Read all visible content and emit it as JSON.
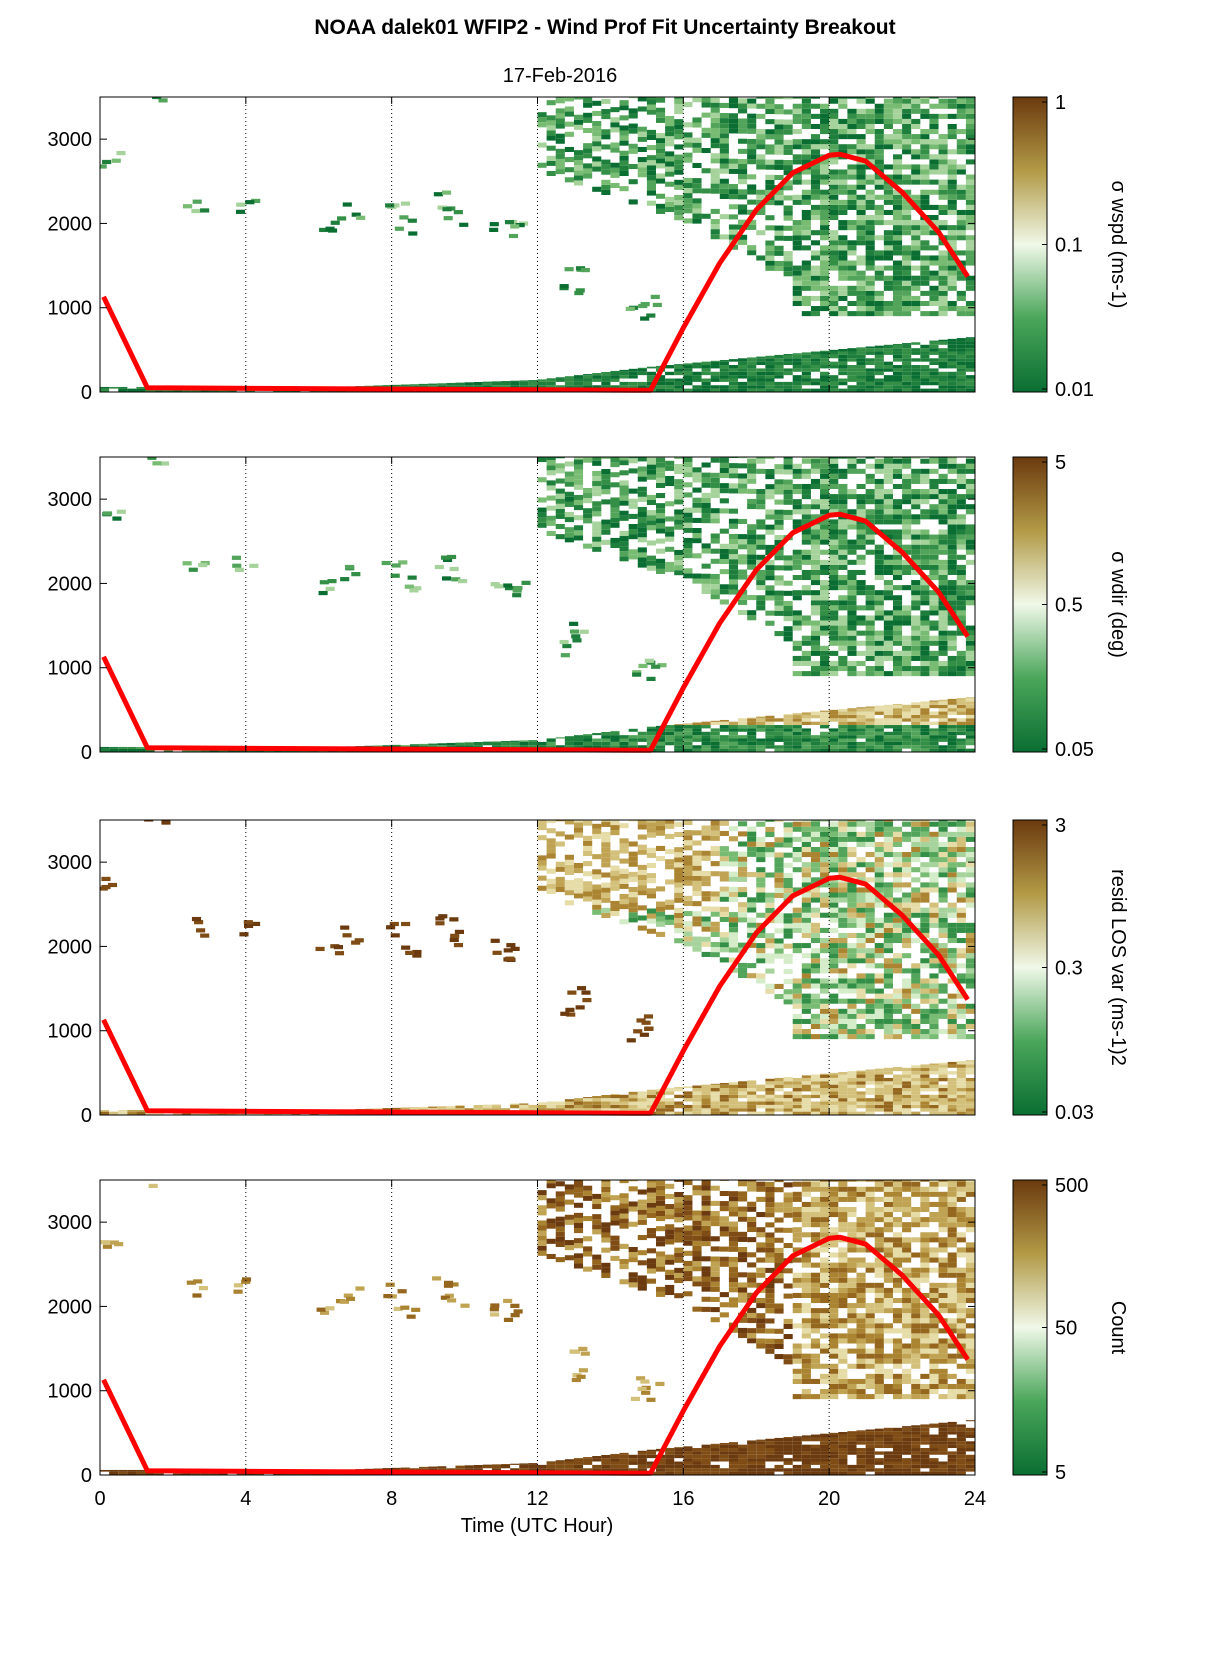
{
  "title": "NOAA dalek01 WFIP2 - Wind Prof Fit Uncertainty Breakout",
  "subtitle": "17-Feb-2016",
  "xlabel": "Time (UTC Hour)",
  "colors": {
    "curve": "#ff0000",
    "low": "#0a6e32",
    "mid": "#f0f8e8",
    "high": "#6b3a0e"
  },
  "chart_data": {
    "type": "heatmap",
    "xlim": [
      0,
      24
    ],
    "ylim": [
      0,
      3500
    ],
    "x_ticks": [
      0,
      4,
      8,
      12,
      16,
      20,
      24
    ],
    "y_ticks": [
      0,
      1000,
      2000,
      3000
    ],
    "vertical_gridlines": [
      4,
      8,
      12,
      16,
      20
    ],
    "overlay_curve": {
      "color": "#ff0000",
      "x": [
        0.1,
        1.3,
        15.1,
        16,
        17,
        18,
        19,
        20,
        20.3,
        21,
        22,
        23,
        23.8
      ],
      "y": [
        1130,
        50,
        20,
        760,
        1530,
        2160,
        2600,
        2810,
        2820,
        2740,
        2370,
        1900,
        1370
      ]
    },
    "panels": [
      {
        "colorbar_label": "σ wspd (ms-1)",
        "colorbar_ticks": [
          "1",
          "0.1",
          "0.01"
        ]
      },
      {
        "colorbar_label": "σ wdir (deg)",
        "colorbar_ticks": [
          "5",
          "0.5",
          "0.05"
        ]
      },
      {
        "colorbar_label": "resid LOS var (ms-1)2",
        "colorbar_ticks": [
          "3",
          "0.3",
          "0.03"
        ]
      },
      {
        "colorbar_label": "Count",
        "colorbar_ticks": [
          "500",
          "50",
          "5"
        ]
      }
    ]
  }
}
